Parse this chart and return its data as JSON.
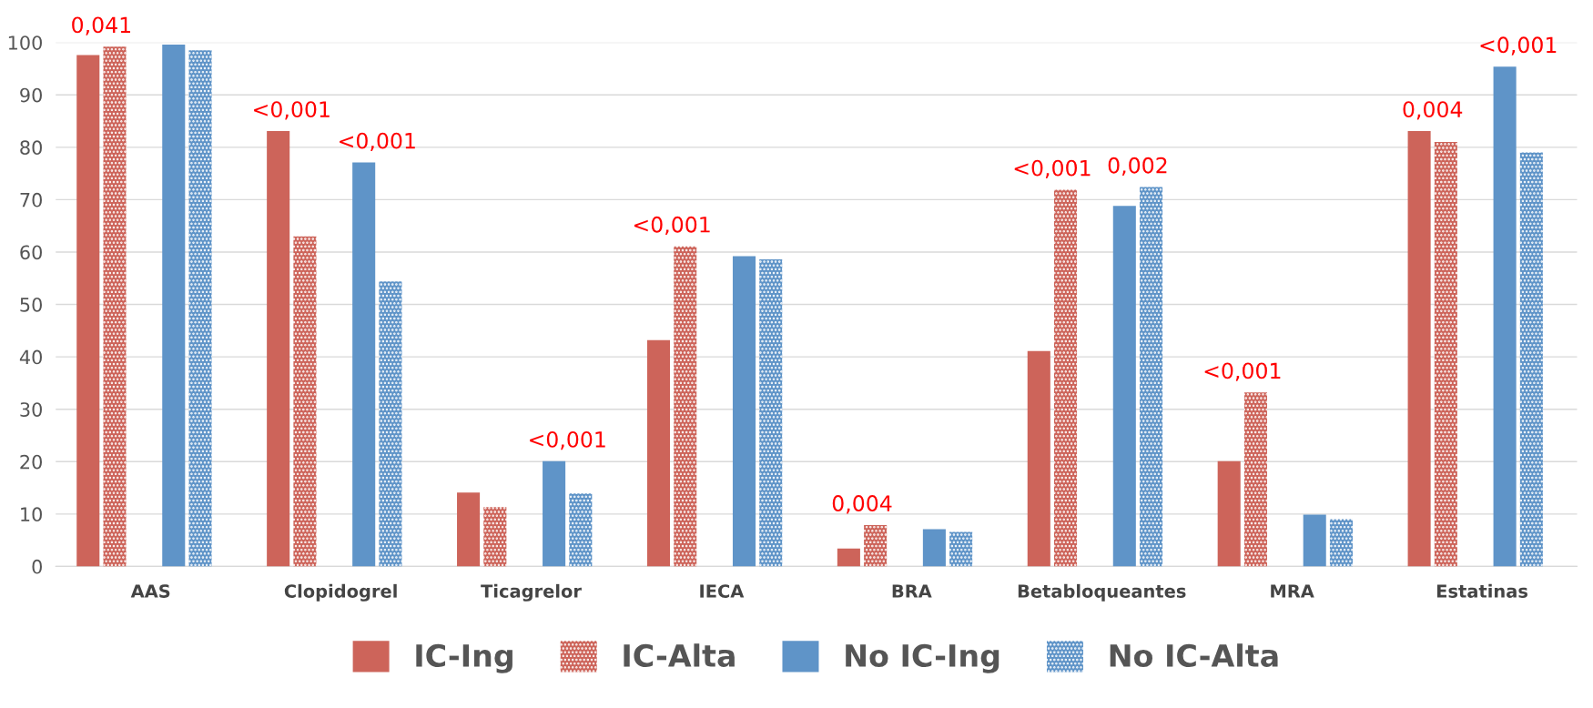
{
  "chart_data": {
    "type": "bar",
    "categories": [
      "AAS",
      "Clopidogrel",
      "Ticagrelor",
      "IECA",
      "BRA",
      "Betabloqueantes",
      "MRA",
      "Estatinas"
    ],
    "series": [
      {
        "name": "IC-Ing",
        "color": "#cd645a",
        "values": [
          97.6,
          83.1,
          14.1,
          43.2,
          3.4,
          41.1,
          20.1,
          83.1
        ]
      },
      {
        "name": "IC-Alta",
        "color": "#cd645a",
        "values": [
          99.2,
          63,
          11.3,
          61.1,
          7.9,
          71.9,
          33.2,
          81
        ]
      },
      {
        "name": "No IC-Ing",
        "color": "#5f94c8",
        "values": [
          99.6,
          77.1,
          20.1,
          59.2,
          7.1,
          68.8,
          9.9,
          95.4
        ]
      },
      {
        "name": "No IC-Alta",
        "color": "#5f94c8",
        "values": [
          98.5,
          54.4,
          13.9,
          58.6,
          6.6,
          72.4,
          9,
          79
        ]
      }
    ],
    "ylim": [
      0,
      100
    ],
    "yticks": [
      0,
      10,
      20,
      30,
      40,
      50,
      60,
      70,
      80,
      90,
      100
    ],
    "grid": "y",
    "legend": "bottom",
    "annotations": [
      "0,041",
      "<0,001",
      "<0,001",
      "<0,001",
      "<0,001",
      "0,004",
      "<0,001",
      "0,002",
      "<0,001",
      "0,004",
      "<0,001"
    ]
  }
}
